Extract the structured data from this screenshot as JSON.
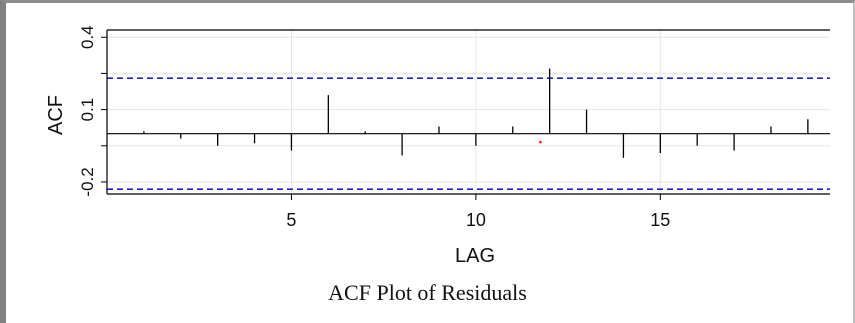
{
  "caption": "ACF Plot of Residuals",
  "chart_data": {
    "type": "bar",
    "subtype": "acf-stem",
    "title": "",
    "xlabel": "LAG",
    "ylabel": "ACF",
    "x": [
      1,
      2,
      3,
      4,
      5,
      6,
      7,
      8,
      9,
      10,
      11,
      12,
      13,
      14,
      15,
      16,
      17,
      18,
      19
    ],
    "values": [
      0.01,
      -0.02,
      -0.05,
      -0.04,
      -0.07,
      0.16,
      0.01,
      -0.09,
      0.03,
      -0.05,
      0.03,
      0.27,
      0.1,
      -0.1,
      -0.08,
      -0.05,
      -0.07,
      0.03,
      0.06
    ],
    "confidence_bound": 0.23,
    "xlim": [
      0,
      19.6
    ],
    "ylim": [
      -0.25,
      0.43
    ],
    "x_ticks": [
      "5",
      "10",
      "15"
    ],
    "x_tick_values": [
      5,
      10,
      15
    ],
    "y_ticks": [
      "0.4",
      "0.1",
      "-0.2"
    ],
    "y_tick_values": [
      0.4,
      0.1,
      -0.2
    ],
    "y_grid_values": [
      0.4,
      0.25,
      0.1,
      -0.05,
      -0.2
    ],
    "red_point": {
      "x": 11.75,
      "y": -0.035
    },
    "grid": true,
    "colors": {
      "stem": "#000000",
      "bound": "#1f1fd6",
      "grid": "#e6e6e6",
      "point": "#ff3030"
    }
  }
}
